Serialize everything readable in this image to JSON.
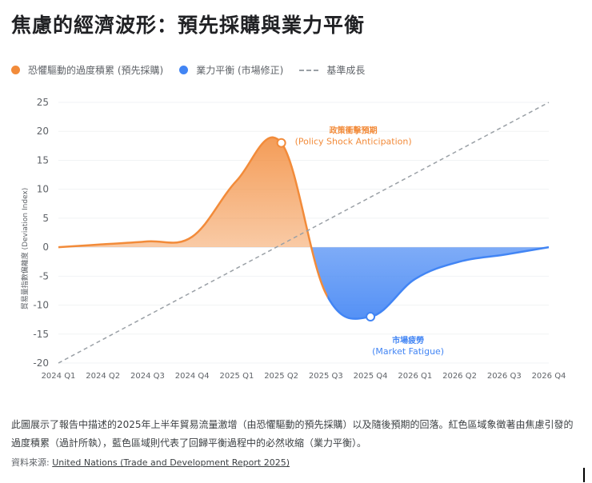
{
  "title": "焦慮的經濟波形：預先採購與業力平衡",
  "legend": [
    {
      "label": "恐懼驅動的過度積累 (預先採購)",
      "color": "#f28b3a"
    },
    {
      "label": "業力平衡 (市場修正)",
      "color": "#4285f4"
    },
    {
      "label": "基準成長",
      "color": "#9aa0a6"
    }
  ],
  "chart_data": {
    "type": "area",
    "ylabel": "貿易量指數偏離度 (Deviation Index)",
    "xlabel": "",
    "ylim": [
      -20,
      25
    ],
    "yticks": [
      25,
      20,
      15,
      10,
      5,
      0,
      -5,
      -10,
      -15,
      -20
    ],
    "categories": [
      "2024 Q1",
      "2024 Q2",
      "2024 Q3",
      "2024 Q4",
      "2025 Q1",
      "2025 Q2",
      "2025 Q3",
      "2025 Q4",
      "2026 Q1",
      "2026 Q2",
      "2026 Q3",
      "2026 Q4"
    ],
    "grid": true,
    "series": [
      {
        "name": "恐懼驅動的過度積累 (預先採購)",
        "color": "#f28b3a",
        "values": [
          0,
          0.5,
          1,
          1.8,
          11.5,
          18,
          -8,
          -12,
          -5.5,
          -2.5,
          -1.3,
          0
        ]
      },
      {
        "name": "基準成長",
        "color": "#9aa0a6",
        "style": "dashed",
        "values": [
          -20,
          -15.9,
          -11.8,
          -7.7,
          -3.6,
          0.5,
          4.5,
          8.6,
          12.7,
          16.8,
          20.9,
          25
        ]
      }
    ],
    "annotations": [
      {
        "category": "2025 Q2",
        "value": 18,
        "label_zh": "政策衝擊預期",
        "label_en": "(Policy Shock Anticipation)",
        "color": "#f28b3a"
      },
      {
        "category": "2025 Q4",
        "value": -12,
        "label_zh": "市場疲勞",
        "label_en": "(Market Fatigue)",
        "color": "#4285f4"
      }
    ]
  },
  "description": "此圖展示了報告中描述的2025年上半年貿易流量激增（由恐懼驅動的預先採購）以及隨後預期的回落。紅色區域象徵著由焦慮引發的過度積累（過計所執），藍色區域則代表了回歸平衡過程中的必然收縮（業力平衡）。",
  "source": {
    "prefix": "資料來源: ",
    "link": "United Nations (Trade and Development Report 2025)"
  }
}
